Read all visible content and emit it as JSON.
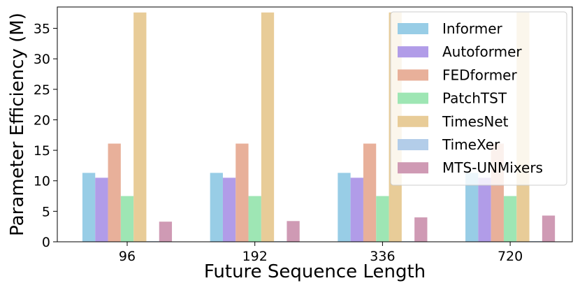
{
  "chart_data": {
    "type": "bar",
    "xlabel": "Future Sequence Length",
    "ylabel": "Parameter Efficiency (M)",
    "categories": [
      "96",
      "192",
      "336",
      "720"
    ],
    "ylim": [
      0,
      38.5
    ],
    "yticks": [
      0,
      5,
      10,
      15,
      20,
      25,
      30,
      35
    ],
    "grid": false,
    "legend_position": "top-right",
    "series": [
      {
        "name": "Informer",
        "color": "#98cde6",
        "values": [
          11.3,
          11.3,
          11.3,
          11.3
        ]
      },
      {
        "name": "Autoformer",
        "color": "#b19ce8",
        "values": [
          10.5,
          10.5,
          10.5,
          10.5
        ]
      },
      {
        "name": "FEDformer",
        "color": "#e8b09a",
        "values": [
          16.1,
          16.1,
          16.1,
          16.1
        ]
      },
      {
        "name": "PatchTST",
        "color": "#9ee6b4",
        "values": [
          7.5,
          7.5,
          7.5,
          7.5
        ]
      },
      {
        "name": "TimesNet",
        "color": "#e8cc98",
        "values": [
          37.6,
          37.6,
          37.6,
          37.6
        ]
      },
      {
        "name": "TimeXer",
        "color": "#b3cde9",
        "values": [
          0.1,
          0.1,
          0.1,
          0.1
        ]
      },
      {
        "name": "MTS-UNMixers",
        "color": "#cf9ab4",
        "values": [
          3.3,
          3.4,
          4.0,
          4.3
        ]
      }
    ]
  }
}
